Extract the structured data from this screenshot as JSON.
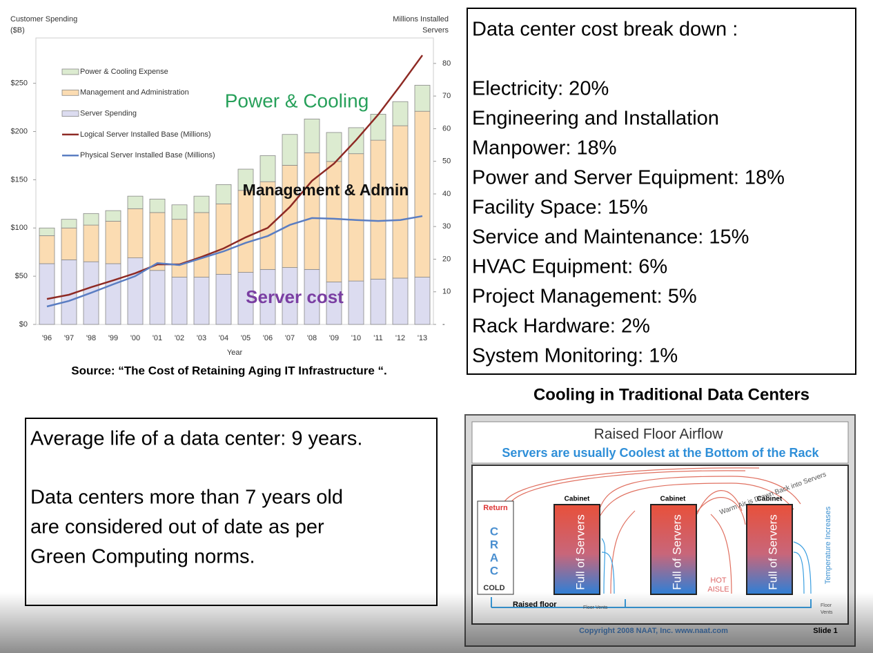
{
  "chart_data": {
    "type": "bar",
    "y_label_lines": [
      "Customer Spending",
      "($B)"
    ],
    "y2_label_lines": [
      "Millions Installed",
      "Servers"
    ],
    "x_label": "Year",
    "categories": [
      "'96",
      "'97",
      "'98",
      "'99",
      "'00",
      "'01",
      "'02",
      "'03",
      "'04",
      "'05",
      "'06",
      "'07",
      "'08",
      "'09",
      "'10",
      "'11",
      "'12",
      "'13"
    ],
    "series": [
      {
        "name": "Power & Cooling Expense",
        "type": "bar",
        "color": "#dcebd0",
        "values": [
          8,
          9,
          12,
          11,
          13,
          14,
          15,
          17,
          20,
          22,
          27,
          32,
          35,
          30,
          27,
          27,
          25,
          27
        ]
      },
      {
        "name": "Management and Administration",
        "type": "bar",
        "color": "#fbdcb2",
        "values": [
          29,
          33,
          38,
          44,
          51,
          60,
          60,
          67,
          73,
          85,
          91,
          106,
          121,
          125,
          132,
          144,
          158,
          172
        ]
      },
      {
        "name": "Server Spending",
        "type": "bar",
        "color": "#dcdcf0",
        "values": [
          63,
          67,
          65,
          63,
          69,
          56,
          49,
          49,
          52,
          54,
          57,
          59,
          57,
          44,
          45,
          47,
          48,
          49
        ]
      },
      {
        "name": "Logical Server Installed Base (Millions)",
        "type": "line",
        "axis": "y2",
        "color": "#8e2a24",
        "values": [
          7.8,
          9.1,
          11.4,
          13.5,
          15.7,
          18.4,
          18.4,
          20.7,
          23.3,
          26.7,
          29.6,
          36,
          44,
          49.3,
          56.5,
          64.3,
          73.2,
          82.5
        ]
      },
      {
        "name": "Physical Server Installed Base (Millions)",
        "type": "line",
        "axis": "y2",
        "color": "#5a7dc2",
        "values": [
          5.5,
          7.2,
          9.7,
          12.3,
          14.8,
          18.8,
          18.2,
          20.3,
          22.4,
          25,
          27.1,
          30.5,
          32.6,
          32.4,
          32,
          31.7,
          32,
          33.2
        ]
      }
    ],
    "ylim": [
      0,
      297
    ],
    "yticks": [
      {
        "value": 0,
        "label": "$0"
      },
      {
        "value": 50,
        "label": "$50"
      },
      {
        "value": 100,
        "label": "$100"
      },
      {
        "value": 150,
        "label": "$150"
      },
      {
        "value": 200,
        "label": "$200"
      },
      {
        "value": 250,
        "label": "$250"
      }
    ],
    "y2lim": [
      0,
      87.8
    ],
    "y2ticks": [
      {
        "value": 0,
        "label": "-"
      },
      10,
      20,
      30,
      40,
      50,
      60,
      70,
      80
    ],
    "annotations": [
      {
        "text": "Power & Cooling",
        "color": "#27a05a"
      },
      {
        "text": "Management & Admin",
        "color": "#111111"
      },
      {
        "text": "Server cost",
        "color": "#7a3ea2"
      }
    ],
    "source": "Source: “The Cost of Retaining Aging IT Infrastructure “."
  },
  "cost_breakdown": {
    "title": "Data center cost break down :",
    "items": [
      "Electricity: 20%",
      "Engineering and Installation",
      "Manpower: 18%",
      "Power and Server Equipment: 18%",
      "Facility Space: 15%",
      "Service and Maintenance: 15%",
      "HVAC Equipment: 6%",
      "Project Management: 5%",
      "Rack Hardware: 2%",
      "System Monitoring: 1%"
    ]
  },
  "note": {
    "lines": [
      "Average life of a data center: 9 years.",
      "Data centers more than 7 years old",
      "are considered out of date as per",
      "Green Computing norms."
    ]
  },
  "cooling_diagram": {
    "title": "Cooling in Traditional Data Centers",
    "header": "Raised Floor Airflow",
    "subheader": "Servers are usually Coolest at the Bottom of the Rack",
    "crac": {
      "top": "Return",
      "letters": [
        "C",
        "R",
        "A",
        "C"
      ],
      "bottom": "COLD"
    },
    "cabinets": [
      {
        "label": "Cabinet",
        "contents": "Full of Servers"
      },
      {
        "label": "Cabinet",
        "contents": "Full of Servers"
      },
      {
        "label": "Cabinet",
        "contents": "Full of Servers"
      }
    ],
    "warm_air": "Warm Air is Drawn Back into Servers",
    "temperature": "Temperature Increases",
    "hot_aisle": [
      "HOT",
      "AISLE"
    ],
    "raised_floor": "Raised floor",
    "floor_vents": "Floor Vents",
    "floor_vents_right": [
      "Floor",
      "Vents"
    ],
    "copyright": "Copyright 2008 NAAT, Inc. www.naat.com",
    "slide": "Slide 1"
  }
}
